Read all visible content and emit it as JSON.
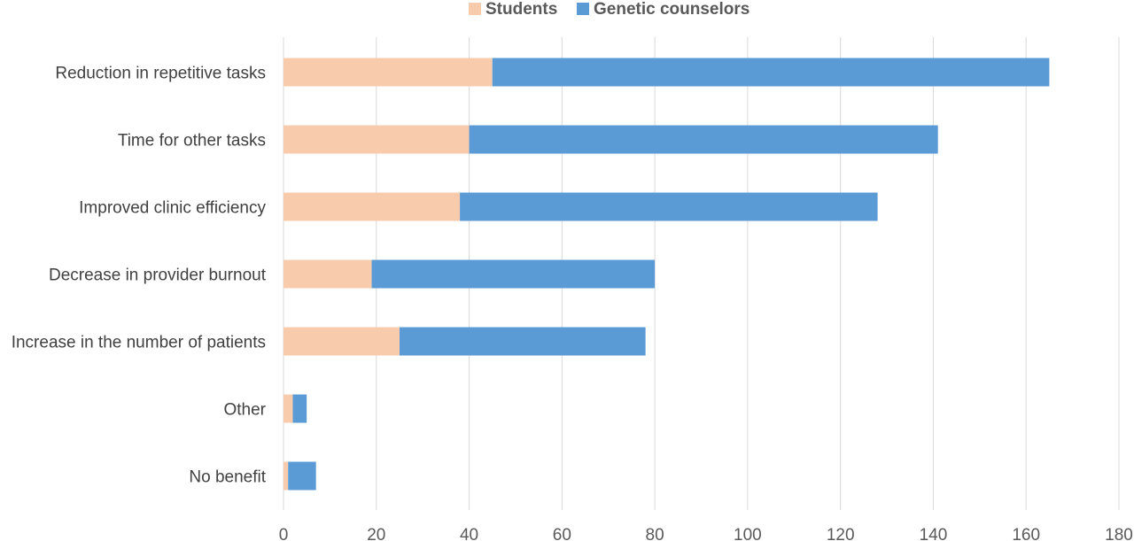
{
  "chart_data": {
    "type": "bar",
    "orientation": "horizontal",
    "stacked": true,
    "categories": [
      "Reduction in repetitive tasks",
      "Time for other tasks",
      "Improved clinic efficiency",
      "Decrease in provider burnout",
      "Increase in the number of patients",
      "Other",
      "No benefit"
    ],
    "series": [
      {
        "name": "Students",
        "color": "#f8cbad",
        "values": [
          45,
          40,
          38,
          19,
          25,
          2,
          1
        ]
      },
      {
        "name": "Genetic counselors",
        "color": "#5b9bd5",
        "values": [
          120,
          101,
          90,
          61,
          53,
          3,
          6
        ]
      }
    ],
    "xlim": [
      0,
      180
    ],
    "x_ticks": [
      "0",
      "20",
      "40",
      "60",
      "80",
      "100",
      "120",
      "140",
      "160",
      "180"
    ],
    "title": "",
    "xlabel": "",
    "ylabel": "",
    "grid": "vertical",
    "legend_position": "top-center"
  }
}
